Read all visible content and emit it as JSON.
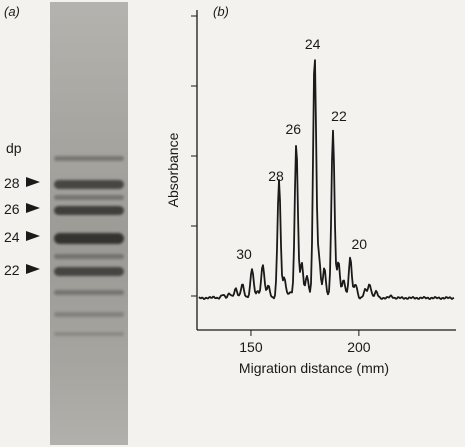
{
  "panel_a": {
    "label": "(a)",
    "dp_heading": "dp",
    "markers": [
      {
        "label": "28"
      },
      {
        "label": "26"
      },
      {
        "label": "24"
      },
      {
        "label": "22"
      }
    ]
  },
  "panel_b": {
    "label": "(b)"
  },
  "chart_data": {
    "type": "line",
    "title": "",
    "xlabel": "Migration distance (mm)",
    "ylabel": "Absorbance",
    "x_ticks": [
      "150",
      "200"
    ],
    "xlim": [
      125,
      245
    ],
    "grid": false,
    "peak_labels": [
      {
        "label": "30",
        "x": 150.5
      },
      {
        "label": "28",
        "x": 163
      },
      {
        "label": "26",
        "x": 171
      },
      {
        "label": "24",
        "x": 179.5
      },
      {
        "label": "22",
        "x": 188
      },
      {
        "label": "20",
        "x": 196
      }
    ]
  }
}
